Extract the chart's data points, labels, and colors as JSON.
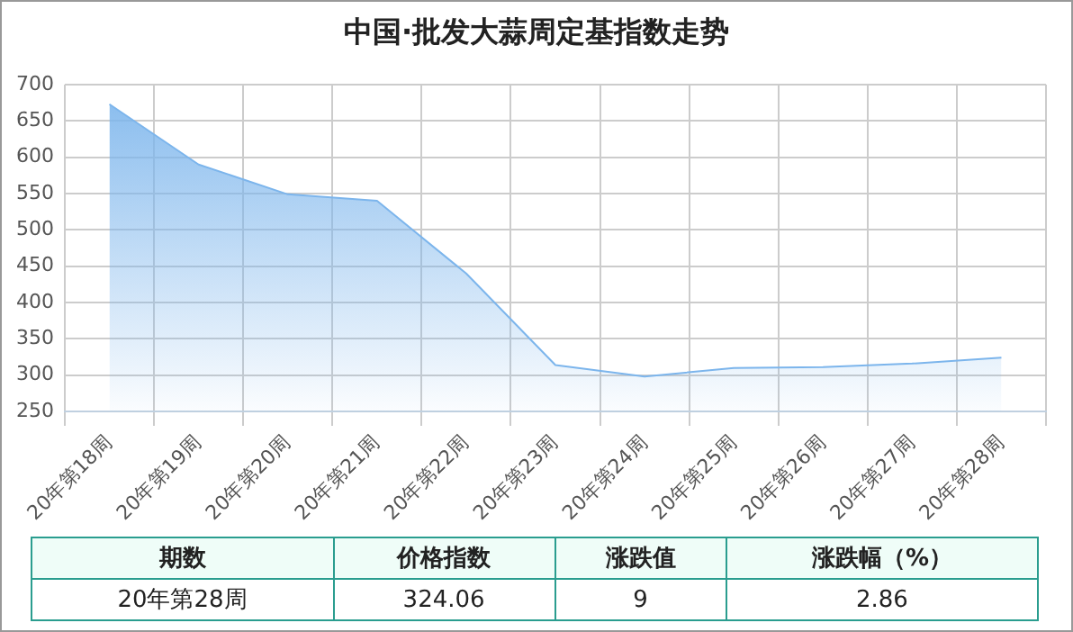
{
  "chart_data": {
    "type": "area",
    "title": "中国·批发大蒜周定基指数走势",
    "categories": [
      "20年第18周",
      "20年第19周",
      "20年第20周",
      "20年第21周",
      "20年第22周",
      "20年第23周",
      "20年第24周",
      "20年第25周",
      "20年第26周",
      "20年第27周",
      "20年第28周"
    ],
    "series": [
      {
        "color": "#7cb5ec",
        "values": [
          673,
          590,
          549,
          540,
          440,
          314,
          298,
          310,
          311,
          316,
          324.06
        ]
      }
    ],
    "ylim": [
      250,
      700
    ],
    "yticks": [
      250,
      300,
      350,
      400,
      450,
      500,
      550,
      600,
      650,
      700
    ],
    "grid": true,
    "legend": false,
    "marker": "none",
    "annotations": [
      "期数",
      "价格指数",
      "涨跌值",
      "涨跌幅（%）",
      "20年第28周",
      "324.06",
      "9",
      "2.86"
    ]
  }
}
